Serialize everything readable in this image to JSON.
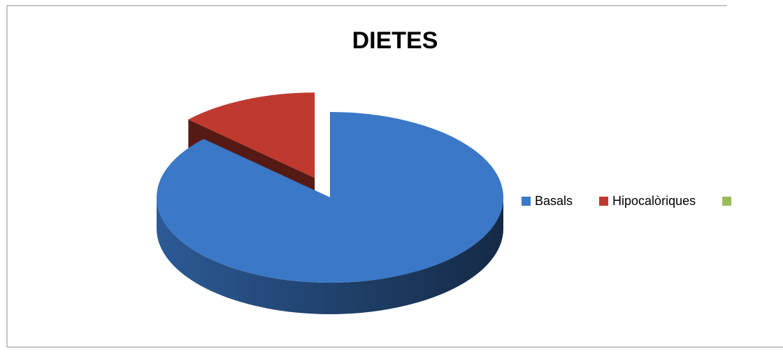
{
  "chart_data": {
    "type": "pie3d",
    "title": "DIETES",
    "categories": [
      "Basals",
      "Hipocalòriques",
      null
    ],
    "values": [
      87,
      13,
      0
    ],
    "colors": [
      "#3b78c7",
      "#c0392f",
      "#9bbb59"
    ],
    "exploded": [
      false,
      true,
      false
    ],
    "legend": "right"
  }
}
